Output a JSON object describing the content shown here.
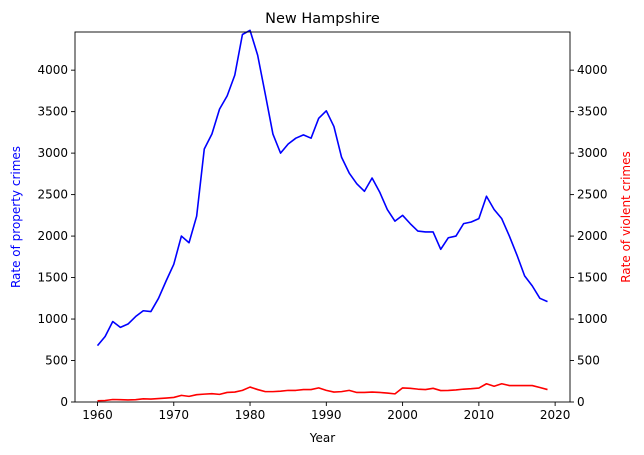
{
  "chart_data": {
    "type": "line",
    "title": "New Hampshire",
    "xlabel": "Year",
    "ylabel_left": "Rate of property crimes",
    "ylabel_right": "Rate of violent crimes",
    "xlim": [
      1957.05,
      2021.95
    ],
    "ylim": [
      0,
      4460
    ],
    "xticks": [
      1960,
      1970,
      1980,
      1990,
      2000,
      2010,
      2020
    ],
    "yticks": [
      0,
      500,
      1000,
      1500,
      2000,
      2500,
      3000,
      3500,
      4000
    ],
    "grid": false,
    "colors": {
      "property": "#0000ff",
      "violent": "#ff0000",
      "axis": "#000000"
    },
    "series": [
      {
        "axis": "left",
        "color": "#0000ff",
        "x": [
          1960,
          1961,
          1962,
          1963,
          1964,
          1965,
          1966,
          1967,
          1968,
          1969,
          1970,
          1971,
          1972,
          1973,
          1974,
          1975,
          1976,
          1977,
          1978,
          1979,
          1980,
          1981,
          1982,
          1983,
          1984,
          1985,
          1986,
          1987,
          1988,
          1989,
          1990,
          1991,
          1992,
          1993,
          1994,
          1995,
          1996,
          1997,
          1998,
          1999,
          2000,
          2001,
          2002,
          2003,
          2004,
          2005,
          2006,
          2007,
          2008,
          2009,
          2010,
          2011,
          2012,
          2013,
          2014,
          2015,
          2016,
          2017,
          2018,
          2019
        ],
        "values": [
          680,
          790,
          970,
          900,
          940,
          1030,
          1100,
          1090,
          1250,
          1460,
          1660,
          2000,
          1920,
          2240,
          3050,
          3230,
          3530,
          3690,
          3940,
          4430,
          4480,
          4180,
          3710,
          3230,
          3000,
          3110,
          3180,
          3220,
          3180,
          3420,
          3510,
          3320,
          2950,
          2760,
          2630,
          2540,
          2700,
          2530,
          2320,
          2180,
          2250,
          2150,
          2060,
          2050,
          2050,
          1840,
          1980,
          2000,
          2150,
          2170,
          2210,
          2480,
          2320,
          2210,
          2000,
          1770,
          1520,
          1400,
          1250,
          1210
        ]
      },
      {
        "axis": "right",
        "color": "#ff0000",
        "x": [
          1960,
          1961,
          1962,
          1963,
          1964,
          1965,
          1966,
          1967,
          1968,
          1969,
          1970,
          1971,
          1972,
          1973,
          1974,
          1975,
          1976,
          1977,
          1978,
          1979,
          1980,
          1981,
          1982,
          1983,
          1984,
          1985,
          1986,
          1987,
          1988,
          1989,
          1990,
          1991,
          1992,
          1993,
          1994,
          1995,
          1996,
          1997,
          1998,
          1999,
          2000,
          2001,
          2002,
          2003,
          2004,
          2005,
          2006,
          2007,
          2008,
          2009,
          2010,
          2011,
          2012,
          2013,
          2014,
          2015,
          2016,
          2017,
          2018,
          2019
        ],
        "values": [
          15,
          18,
          30,
          28,
          25,
          28,
          38,
          35,
          42,
          48,
          55,
          80,
          68,
          88,
          95,
          100,
          92,
          115,
          120,
          140,
          180,
          150,
          125,
          125,
          130,
          140,
          140,
          150,
          150,
          170,
          140,
          120,
          125,
          140,
          115,
          115,
          120,
          115,
          108,
          98,
          170,
          165,
          155,
          150,
          165,
          138,
          140,
          145,
          155,
          160,
          168,
          220,
          190,
          220,
          198,
          198,
          198,
          198,
          175,
          150
        ]
      }
    ]
  }
}
